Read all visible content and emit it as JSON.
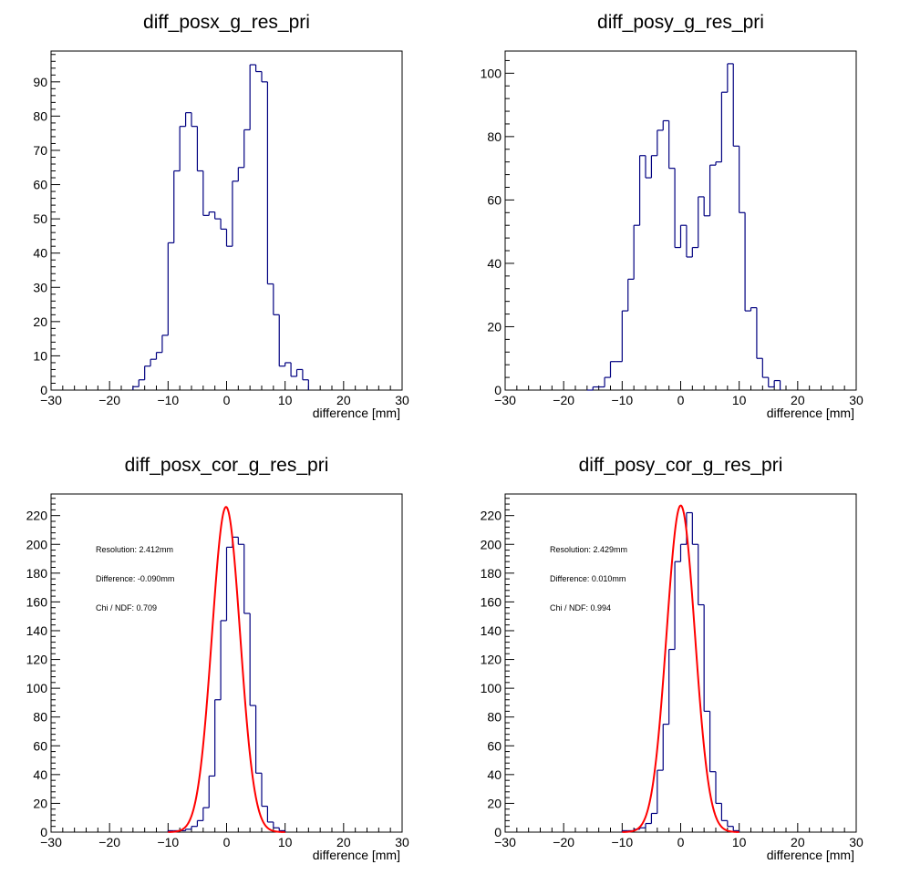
{
  "chart_data": [
    {
      "type": "bar",
      "title": "diff_posx_g_res_pri",
      "xlabel": "difference [mm]",
      "ylabel": "",
      "xlim": [
        -30,
        30
      ],
      "ylim": [
        0,
        99
      ],
      "xticks": [
        -30,
        -20,
        -10,
        0,
        10,
        20,
        30
      ],
      "yticks": [
        0,
        10,
        20,
        30,
        40,
        50,
        60,
        70,
        80,
        90
      ],
      "bin_width": 1,
      "bin_start": -16,
      "values": [
        1,
        3,
        7,
        9,
        11,
        16,
        43,
        64,
        77,
        81,
        77,
        64,
        51,
        52,
        50,
        47,
        42,
        61,
        65,
        76,
        95,
        93,
        90,
        31,
        22,
        7,
        8,
        4,
        6,
        3
      ],
      "color": "#000080"
    },
    {
      "type": "bar",
      "title": "diff_posy_g_res_pri",
      "xlabel": "difference [mm]",
      "ylabel": "",
      "xlim": [
        -30,
        30
      ],
      "ylim": [
        0,
        107
      ],
      "xticks": [
        -30,
        -20,
        -10,
        0,
        10,
        20,
        30
      ],
      "yticks": [
        0,
        20,
        40,
        60,
        80,
        100
      ],
      "bin_width": 1,
      "bin_start": -16,
      "values": [
        0,
        1,
        1,
        4,
        9,
        9,
        25,
        35,
        52,
        74,
        67,
        74,
        82,
        85,
        70,
        45,
        52,
        42,
        45,
        61,
        55,
        71,
        72,
        94,
        103,
        77,
        56,
        25,
        26,
        10,
        4,
        1,
        3
      ],
      "color": "#000080"
    },
    {
      "type": "bar",
      "title": "diff_posx_cor_g_res_pri",
      "xlabel": "difference [mm]",
      "ylabel": "",
      "xlim": [
        -30,
        30
      ],
      "ylim": [
        0,
        235
      ],
      "xticks": [
        -30,
        -20,
        -10,
        0,
        10,
        20,
        30
      ],
      "yticks": [
        0,
        20,
        40,
        60,
        80,
        100,
        120,
        140,
        160,
        180,
        200,
        220
      ],
      "bin_width": 1,
      "bin_start": -10,
      "values": [
        1,
        1,
        1,
        2,
        4,
        8,
        17,
        39,
        92,
        147,
        198,
        205,
        200,
        152,
        88,
        41,
        18,
        7,
        3,
        1
      ],
      "fit": {
        "mean": -0.09,
        "sigma": 2.412,
        "amplitude": 226,
        "color": "#ff0000"
      },
      "annotations": [
        "Resolution: 2.412mm",
        "Difference: -0.090mm",
        "Chi / NDF: 0.709"
      ],
      "color": "#000080"
    },
    {
      "type": "bar",
      "title": "diff_posy_cor_g_res_pri",
      "xlabel": "difference [mm]",
      "ylabel": "",
      "xlim": [
        -30,
        30
      ],
      "ylim": [
        0,
        235
      ],
      "xticks": [
        -30,
        -20,
        -10,
        0,
        10,
        20,
        30
      ],
      "yticks": [
        0,
        20,
        40,
        60,
        80,
        100,
        120,
        140,
        160,
        180,
        200,
        220
      ],
      "bin_width": 1,
      "bin_start": -10,
      "values": [
        1,
        1,
        2,
        3,
        6,
        13,
        43,
        75,
        127,
        188,
        200,
        222,
        200,
        158,
        84,
        42,
        20,
        8,
        4,
        1
      ],
      "fit": {
        "mean": 0.01,
        "sigma": 2.429,
        "amplitude": 227,
        "color": "#ff0000"
      },
      "annotations": [
        "Resolution: 2.429mm",
        "Difference: 0.010mm",
        "Chi / NDF: 0.994"
      ],
      "color": "#000080"
    }
  ]
}
